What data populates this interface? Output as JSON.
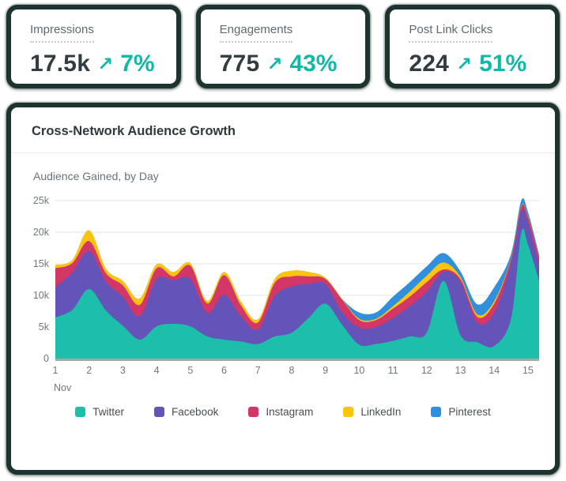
{
  "accent_color": "#10b9a6",
  "stats": [
    {
      "label": "Impressions",
      "value": "17.5k",
      "arrow": "↗",
      "delta": "7%"
    },
    {
      "label": "Engagements",
      "value": "775",
      "arrow": "↗",
      "delta": "43%"
    },
    {
      "label": "Post Link Clicks",
      "value": "224",
      "arrow": "↗",
      "delta": "51%"
    }
  ],
  "main": {
    "title": "Cross-Network Audience Growth",
    "subtitle": "Audience Gained, by Day"
  },
  "chart_data": {
    "type": "area",
    "stacked": true,
    "title": "Cross-Network Audience Growth",
    "subtitle": "Audience Gained, by Day",
    "values_unit": "thousands of audience gained",
    "x_unit": "day of month",
    "month_label": "Nov",
    "grid": true,
    "legend_position": "bottom",
    "ylim": [
      0,
      25000
    ],
    "y_ticks": [
      "0",
      "5k",
      "10k",
      "15k",
      "20k",
      "25k"
    ],
    "x_ticks": [
      "1",
      "2",
      "3",
      "4",
      "5",
      "6",
      "7",
      "8",
      "9",
      "10",
      "11",
      "12",
      "13",
      "14",
      "15"
    ],
    "x": [
      1,
      1.5,
      2,
      2.5,
      3,
      3.5,
      4,
      4.5,
      5,
      5.5,
      6,
      6.5,
      7,
      7.5,
      8,
      8.5,
      9,
      9.5,
      10,
      10.5,
      11,
      11.5,
      12,
      12.5,
      13,
      13.5,
      14,
      14.5,
      14.8,
      15,
      15.33
    ],
    "series": [
      {
        "name": "Twitter",
        "color": "#1dbfaa",
        "values": [
          6.5,
          7.7,
          11.0,
          7.6,
          5.2,
          3.0,
          5.1,
          5.5,
          5.1,
          3.5,
          3.0,
          2.7,
          2.3,
          3.5,
          4.1,
          6.4,
          8.7,
          5.3,
          2.2,
          2.3,
          2.8,
          3.5,
          4.1,
          12.3,
          3.7,
          2.6,
          2.0,
          6.4,
          19.9,
          18.0,
          12.3
        ]
      },
      {
        "name": "Facebook",
        "color": "#6453b8",
        "values": [
          4.8,
          5.9,
          6.0,
          4.6,
          4.6,
          3.7,
          7.5,
          6.9,
          7.5,
          3.7,
          7.1,
          4.0,
          2.3,
          6.4,
          7.3,
          5.4,
          3.1,
          2.0,
          2.7,
          2.7,
          3.6,
          4.8,
          6.5,
          1.4,
          8.4,
          3.1,
          5.2,
          8.7,
          3.4,
          3.5,
          2.6
        ]
      },
      {
        "name": "Instagram",
        "color": "#d23768",
        "values": [
          3.0,
          1.5,
          1.6,
          1.3,
          1.8,
          1.8,
          1.7,
          0.6,
          2.1,
          1.5,
          3.1,
          1.7,
          1.1,
          2.1,
          1.6,
          1.2,
          0.8,
          2.0,
          1.2,
          1.1,
          1.5,
          1.5,
          1.5,
          0.4,
          0.5,
          0.9,
          1.5,
          0.7,
          0.7,
          0.9,
          1.1
        ]
      },
      {
        "name": "LinkedIn",
        "color": "#fcc40e",
        "values": [
          0.5,
          0.5,
          1.7,
          0.7,
          0.7,
          1.0,
          0.6,
          0.7,
          0.4,
          0.4,
          0.5,
          0.6,
          0.5,
          0.6,
          0.9,
          0.7,
          0.2,
          0.1,
          0.2,
          0.2,
          0.4,
          0.8,
          1.0,
          1.1,
          0.3,
          0.4,
          0.4,
          0.1,
          0.1,
          0.1,
          0.0
        ]
      },
      {
        "name": "Pinterest",
        "color": "#3090dd",
        "values": [
          0,
          0,
          0,
          0,
          0,
          0,
          0,
          0,
          0,
          0,
          0,
          0,
          0,
          0,
          0,
          0,
          0,
          0,
          1.0,
          1.0,
          1.5,
          1.5,
          1.5,
          1.5,
          0.9,
          1.6,
          2.2,
          0.7,
          0.9,
          0.7,
          0.4
        ]
      }
    ],
    "axis_colors": {
      "grid": "#e4e4e4",
      "baseline": "#a8a8a8",
      "tick_text": "#6e787d"
    }
  }
}
